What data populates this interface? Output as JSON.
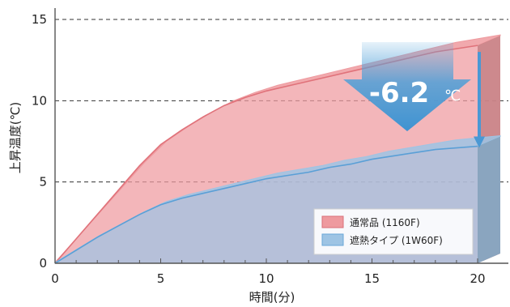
{
  "chart_data": {
    "type": "area",
    "xlabel": "時間(分)",
    "ylabel": "上昇温度(℃)",
    "xlim": [
      0,
      20
    ],
    "ylim": [
      0,
      15
    ],
    "x_ticks": [
      0,
      5,
      10,
      15,
      20
    ],
    "y_ticks": [
      0,
      5,
      10,
      15
    ],
    "x_tick_labels": [
      "0",
      "5",
      "10",
      "15",
      "20"
    ],
    "y_tick_labels": [
      "0",
      "5",
      "10",
      "15"
    ],
    "grid": "horizontal-dashed",
    "legend_position": "bottom-right",
    "series": [
      {
        "name": "通常品 (1160F)",
        "color": "#ee9a9f",
        "x": [
          0,
          1,
          2,
          3,
          4,
          5,
          6,
          7,
          8,
          9,
          10,
          11,
          12,
          13,
          14,
          15,
          16,
          17,
          18,
          19,
          20
        ],
        "values": [
          0,
          1.5,
          3.0,
          4.5,
          6.0,
          7.3,
          8.2,
          9.0,
          9.7,
          10.2,
          10.6,
          10.9,
          11.2,
          11.5,
          11.8,
          12.1,
          12.4,
          12.7,
          13.0,
          13.2,
          13.4
        ]
      },
      {
        "name": "遮熱タイプ (1W60F)",
        "color": "#9ec4e4",
        "x": [
          0,
          1,
          2,
          3,
          4,
          5,
          6,
          7,
          8,
          9,
          10,
          11,
          12,
          13,
          14,
          15,
          16,
          17,
          18,
          19,
          20
        ],
        "values": [
          0,
          0.8,
          1.6,
          2.3,
          3.0,
          3.6,
          4.0,
          4.3,
          4.6,
          4.9,
          5.2,
          5.4,
          5.6,
          5.9,
          6.1,
          6.4,
          6.6,
          6.8,
          7.0,
          7.1,
          7.2
        ]
      }
    ],
    "annotation": {
      "value": "-6.2",
      "unit": "℃",
      "x": 20
    }
  }
}
